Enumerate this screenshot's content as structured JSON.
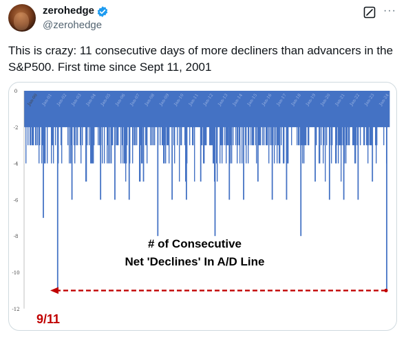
{
  "tweet": {
    "display_name": "zerohedge",
    "handle": "@zerohedge",
    "verified_icon": "verified-badge-icon",
    "grok_icon": "grok-icon",
    "more_label": "···",
    "text": "This is crazy: 11 consecutive days of more decliners than advancers in the S&P500. First time since Sept 11, 2001"
  },
  "colors": {
    "bar": "#4472c4",
    "annotation": "#c00000",
    "verified": "#1d9bf0"
  },
  "chart_data": {
    "type": "bar",
    "title": "",
    "annotation_title": [
      "# of Consecutive",
      "Net 'Declines' In A/D Line"
    ],
    "callout": "9/11",
    "ylim": [
      -12,
      0
    ],
    "yticks": [
      0,
      -2,
      -4,
      -6,
      -8,
      -10,
      -12
    ],
    "xticks": [
      "Jan-00",
      "Jan-01",
      "Jan-02",
      "Jan-03",
      "Jan-04",
      "Jan-05",
      "Jan-06",
      "Jan-07",
      "Jan-08",
      "Jan-09",
      "Jan-10",
      "Jan-11",
      "Jan-12",
      "Jan-13",
      "Jan-14",
      "Jan-15",
      "Jan-16",
      "Jan-17",
      "Jan-18",
      "Jan-19",
      "Jan-20",
      "Jan-21",
      "Jan-22",
      "Jan-23",
      "Jan-24"
    ],
    "x": [
      "2000",
      "2001",
      "2002",
      "2003",
      "2004",
      "2005",
      "2006",
      "2007",
      "2008",
      "2009",
      "2010",
      "2011",
      "2012",
      "2013",
      "2014",
      "2015",
      "2016",
      "2017",
      "2018",
      "2019",
      "2020",
      "2021",
      "2022",
      "2023",
      "2024"
    ],
    "values": [
      -7,
      -11,
      -6,
      -5,
      -6,
      -6,
      -6,
      -5,
      -8,
      -6,
      -6,
      -5,
      -8,
      -6,
      -6,
      -5,
      -6,
      -6,
      -8,
      -5,
      -6,
      -6,
      -6,
      -5,
      -11
    ]
  }
}
